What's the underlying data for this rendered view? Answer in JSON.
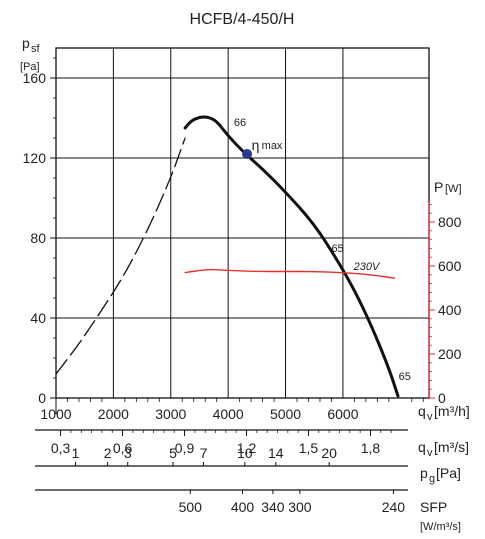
{
  "chart_data": {
    "type": "line",
    "title": "HCFB/4-450/H",
    "y_axis_left": {
      "label_main": "p",
      "label_sub": "sf",
      "unit": "[Pa]",
      "range": [
        0,
        160
      ],
      "ticks": [
        0,
        40,
        80,
        120,
        160
      ],
      "tick_labels": [
        "0",
        "40",
        "80",
        "120",
        "160"
      ]
    },
    "y_axis_right": {
      "label": "P",
      "unit": "[W]",
      "color": "#e8312f",
      "range": [
        0,
        800
      ],
      "ticks": [
        0,
        200,
        400,
        600,
        800
      ],
      "tick_labels": [
        "0",
        "200",
        "400",
        "600",
        "800"
      ]
    },
    "x_axis": {
      "label_main": "q",
      "label_sub": "v",
      "unit": "[m³/h]",
      "range": [
        1000,
        7500
      ],
      "ticks": [
        1000,
        2000,
        3000,
        4000,
        5000,
        6000
      ],
      "tick_labels": [
        "1000",
        "2000",
        "3000",
        "4000",
        "5000",
        "6000"
      ]
    },
    "secondary_scales": [
      {
        "name": "qv_m3s",
        "label_main": "q",
        "label_sub": "v",
        "unit": "[m³/s]",
        "values": [
          0.3,
          0.6,
          0.9,
          1.2,
          1.5,
          1.8
        ],
        "tick_labels": [
          "0,3",
          "0,6",
          "0,9",
          "1,2",
          "1,5",
          "1,8"
        ]
      },
      {
        "name": "pg",
        "label_main": "p",
        "label_sub": "g",
        "unit": "[Pa]",
        "positions_qv": [
          1340,
          1900,
          2250,
          3040,
          3570,
          4290,
          4830,
          5760
        ],
        "tick_labels": [
          "1",
          "2",
          "3",
          "5",
          "7",
          "10",
          "14",
          "20"
        ]
      },
      {
        "name": "sfp",
        "label_main": "SFP",
        "unit": "[W/m³/s]",
        "positions_qv": [
          3340,
          4250,
          4780,
          5250,
          6880
        ],
        "tick_labels": [
          "500",
          "400",
          "340",
          "300",
          "240"
        ]
      }
    ],
    "series": [
      {
        "kind": "pressure-dashed",
        "color": "#111111",
        "x": [
          1000,
          1400,
          1800,
          2200,
          2600,
          3000,
          3250
        ],
        "y": [
          12,
          27,
          44,
          62,
          84,
          110,
          130
        ]
      },
      {
        "kind": "pressure-solid",
        "color": "#111111",
        "x": [
          3250,
          3350,
          3500,
          3650,
          3800,
          4000,
          4300,
          4600,
          5000,
          5500,
          5900,
          6200,
          6500,
          6800,
          6960
        ],
        "y": [
          135,
          138.5,
          140.5,
          140.5,
          138.5,
          131,
          122,
          114.5,
          103,
          87,
          69,
          54,
          36,
          15,
          1
        ]
      },
      {
        "name": "230V",
        "kind": "power",
        "color": "#e8312f",
        "x": [
          3250,
          3500,
          3700,
          4000,
          4500,
          5000,
          5500,
          6000,
          6500,
          6900
        ],
        "y": [
          570,
          580,
          585,
          580,
          575,
          575,
          575,
          570,
          560,
          545
        ]
      }
    ],
    "annotations": [
      {
        "text": "66",
        "x": 4100,
        "y": 136
      },
      {
        "text": "65",
        "x": 5800,
        "y": 73
      },
      {
        "text": "65",
        "x": 6970,
        "y": 9
      },
      {
        "text": "η",
        "sub": "max",
        "x": 4340,
        "y": 124
      }
    ],
    "eta_max_point": {
      "x": 4330,
      "y": 122,
      "color": "#2b3990"
    },
    "grid": true
  }
}
